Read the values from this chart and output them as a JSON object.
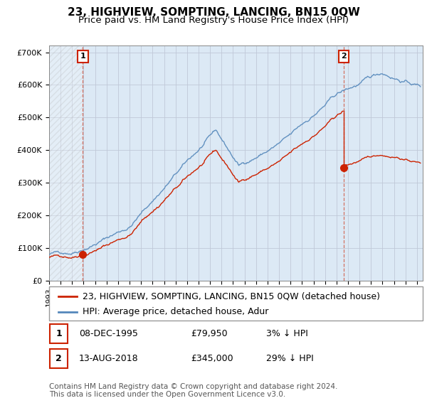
{
  "title": "23, HIGHVIEW, SOMPTING, LANCING, BN15 0QW",
  "subtitle": "Price paid vs. HM Land Registry's House Price Index (HPI)",
  "ylim": [
    0,
    720000
  ],
  "yticks": [
    0,
    100000,
    200000,
    300000,
    400000,
    500000,
    600000,
    700000
  ],
  "ytick_labels": [
    "£0",
    "£100K",
    "£200K",
    "£300K",
    "£400K",
    "£500K",
    "£600K",
    "£700K"
  ],
  "xlim_start": 1993.0,
  "xlim_end": 2025.5,
  "background_color": "#ffffff",
  "plot_bg_color": "#dce9f5",
  "hatch_color": "#b0b0b0",
  "grid_color": "#c0c8d8",
  "hpi_color": "#5588bb",
  "price_color": "#cc2200",
  "sale1_date": 1995.93,
  "sale1_price": 79950,
  "sale2_date": 2018.62,
  "sale2_price": 345000,
  "legend_line1": "23, HIGHVIEW, SOMPTING, LANCING, BN15 0QW (detached house)",
  "legend_line2": "HPI: Average price, detached house, Adur",
  "ann1_date": "08-DEC-1995",
  "ann1_price": "£79,950",
  "ann1_rel": "3% ↓ HPI",
  "ann2_date": "13-AUG-2018",
  "ann2_price": "£345,000",
  "ann2_rel": "29% ↓ HPI",
  "footer": "Contains HM Land Registry data © Crown copyright and database right 2024.\nThis data is licensed under the Open Government Licence v3.0.",
  "title_fontsize": 11,
  "subtitle_fontsize": 9.5,
  "tick_fontsize": 8,
  "legend_fontsize": 9,
  "annotation_fontsize": 9,
  "footer_fontsize": 7.5
}
